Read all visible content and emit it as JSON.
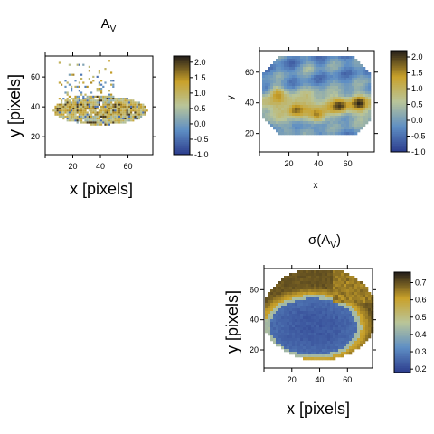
{
  "palette": {
    "low": "#2d3e8e",
    "midlow": "#5f8fc4",
    "mid": "#b9c59a",
    "midhigh": "#c9a12a",
    "high": "#2a231b"
  },
  "chart_data": [
    {
      "type": "heatmap",
      "title": "A",
      "title_subscript": "V",
      "xlabel": "x [pixels]",
      "ylabel": "y [pixels]",
      "xticks": [
        "20",
        "40",
        "60"
      ],
      "yticks": [
        "20",
        "40",
        "60"
      ],
      "xlim": [
        0,
        78
      ],
      "ylim": [
        8,
        74
      ],
      "colorbar": {
        "ticks": [
          "2.0",
          "1.5",
          "1.0",
          "0.5",
          "0.0",
          "-0.5",
          "-1.0"
        ],
        "range": [
          -1.0,
          2.2
        ]
      },
      "description_values": {
        "region": "horizontal elliptical band of noisy extinction values centered near y=38, spanning x 5 to 75, with sparse scattered pixels above up to y=70"
      }
    },
    {
      "type": "heatmap",
      "title": "",
      "xlabel": "x",
      "ylabel": "y",
      "xticks": [
        "20",
        "40",
        "60"
      ],
      "yticks": [
        "20",
        "40",
        "60"
      ],
      "xlim": [
        0,
        78
      ],
      "ylim": [
        8,
        74
      ],
      "colorbar": {
        "ticks": [
          "2.0",
          "1.5",
          "1.0",
          "0.5",
          "0.0",
          "-0.5",
          "-1.0"
        ],
        "range": [
          -1.0,
          2.2
        ]
      }
    },
    {
      "type": "heatmap",
      "title": "σ(A",
      "title_subscript": "V",
      "title_suffix": ")",
      "xlabel": "x [pixels]",
      "ylabel": "y [pixels]",
      "xticks": [
        "20",
        "40",
        "60"
      ],
      "yticks": [
        "20",
        "40",
        "60"
      ],
      "xlim": [
        0,
        78
      ],
      "ylim": [
        8,
        74
      ],
      "colorbar": {
        "ticks": [
          "0.7",
          "0.6",
          "0.5",
          "0.4",
          "0.3",
          "0.2"
        ],
        "range": [
          0.18,
          0.76
        ]
      }
    }
  ]
}
